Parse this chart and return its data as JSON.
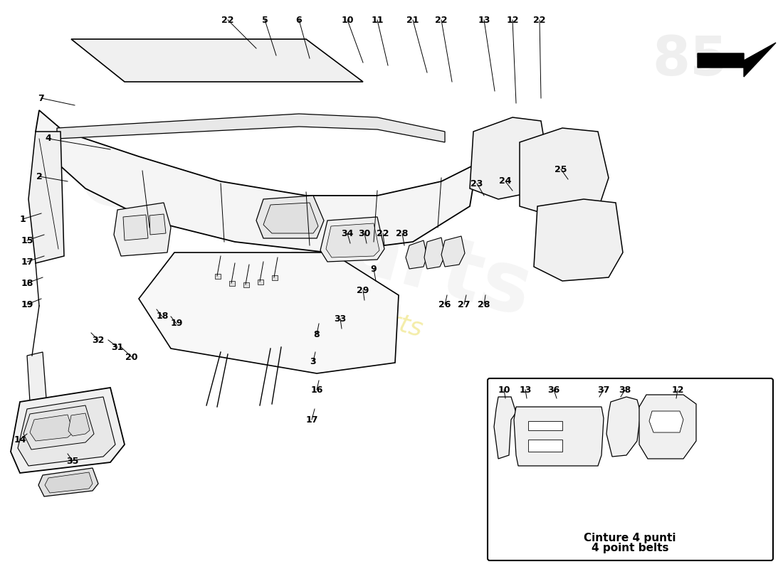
{
  "background_color": "#ffffff",
  "figsize": [
    11.0,
    8.0
  ],
  "dpi": 100,
  "inset_label_line1": "Cinture 4 punti",
  "inset_label_line2": "4 point belts",
  "watermark_yellow": "#e8d840",
  "line_color": "#000000"
}
